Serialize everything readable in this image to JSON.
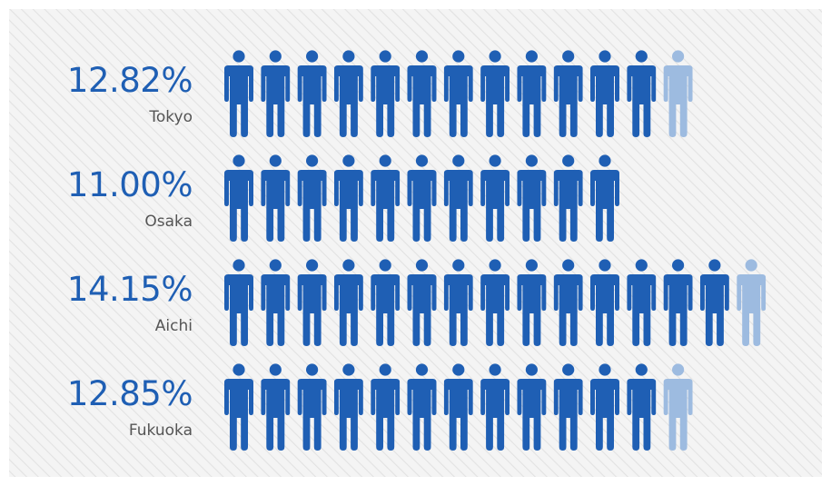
{
  "chart_data": {
    "type": "pictograph",
    "title": "",
    "categories": [
      "Tokyo",
      "Osaka",
      "Aichi",
      "Fukuoka"
    ],
    "values": [
      12.82,
      11.0,
      14.15,
      12.85
    ],
    "value_labels": [
      "12.82%",
      "11.00%",
      "14.15%",
      "12.85%"
    ],
    "unit_per_icon_percent": 1,
    "icon": "person-icon"
  },
  "colors": {
    "icon_fill": "#1f5fb4",
    "icon_remainder": "#9dbbe0",
    "value_text": "#1f5fb4",
    "category_text": "#555555",
    "background": "#f4f4f4",
    "stripe": "#e2e2e2"
  }
}
